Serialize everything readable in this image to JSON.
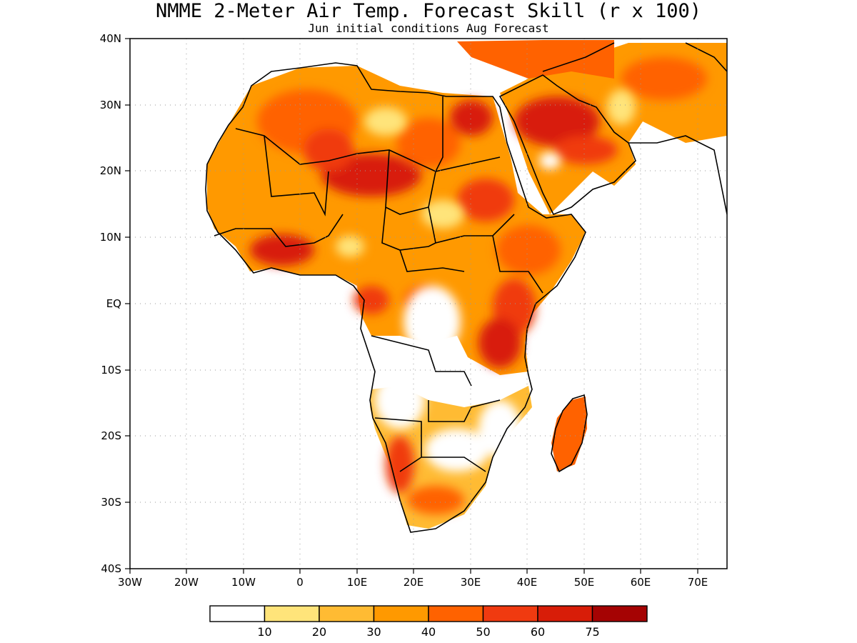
{
  "title": "NMME 2-Meter Air Temp. Forecast Skill (r x 100)",
  "subtitle": "Jun initial conditions  Aug Forecast",
  "axes": {
    "x_ticks": [
      "30W",
      "20W",
      "10W",
      "0",
      "10E",
      "20E",
      "30E",
      "40E",
      "50E",
      "60E",
      "70E"
    ],
    "y_ticks": [
      "40N",
      "30N",
      "20N",
      "10N",
      "EQ",
      "10S",
      "20S",
      "30S",
      "40S"
    ]
  },
  "colorbar": {
    "colors": [
      "#ffffff",
      "#ffe47a",
      "#ffbb33",
      "#ff9900",
      "#ff6200",
      "#f03a10",
      "#d81d08",
      "#a50303"
    ],
    "labels": [
      "10",
      "20",
      "30",
      "40",
      "50",
      "60",
      "75"
    ]
  }
}
